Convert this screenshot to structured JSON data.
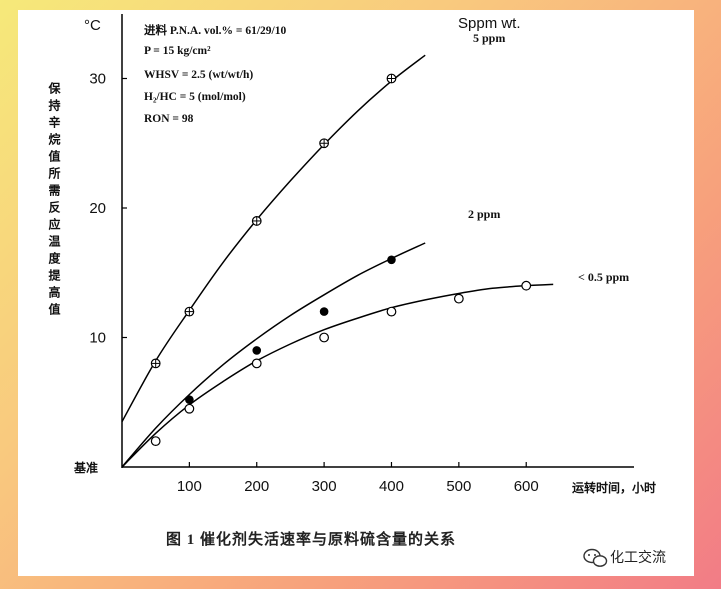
{
  "chart_data": {
    "type": "line",
    "title": "图 1  催化剂失活速率与原料硫含量的关系",
    "ylabel": "保持辛烷值所需反应温度提高值",
    "yunit": "°C",
    "xlabel": "运转时间，小时",
    "y_origin_label": "基准",
    "legend_title": "Sppm wt.",
    "xlim": [
      0,
      650
    ],
    "ylim": [
      -2,
      35
    ],
    "x_ticks": [
      100,
      200,
      300,
      400,
      500,
      600
    ],
    "y_ticks": [
      10,
      20,
      30
    ],
    "conditions": [
      "进料 P.N.A. vol.% = 61/29/10",
      "P = 15 kg/cm²",
      "WHSV = 2.5 (wt/wt/h)",
      "H₂/HC = 5 (mol/mol)",
      "RON = 98"
    ],
    "series": [
      {
        "name": "5 ppm",
        "marker": "circle-plus",
        "points": [
          [
            50,
            8
          ],
          [
            100,
            12
          ],
          [
            200,
            19
          ],
          [
            300,
            25
          ],
          [
            400,
            30
          ]
        ],
        "curve": [
          [
            0,
            3.5
          ],
          [
            50,
            8.2
          ],
          [
            100,
            12.1
          ],
          [
            150,
            15.8
          ],
          [
            200,
            19.1
          ],
          [
            250,
            22.1
          ],
          [
            300,
            24.9
          ],
          [
            350,
            27.5
          ],
          [
            400,
            29.8
          ],
          [
            450,
            31.8
          ]
        ]
      },
      {
        "name": "2 ppm",
        "marker": "filled-circle",
        "points": [
          [
            100,
            5.2
          ],
          [
            200,
            9
          ],
          [
            300,
            12
          ],
          [
            400,
            16
          ]
        ],
        "curve": [
          [
            0,
            0
          ],
          [
            50,
            3
          ],
          [
            100,
            5.6
          ],
          [
            150,
            7.9
          ],
          [
            200,
            9.9
          ],
          [
            250,
            11.7
          ],
          [
            300,
            13.3
          ],
          [
            350,
            14.8
          ],
          [
            400,
            16.1
          ],
          [
            450,
            17.3
          ]
        ]
      },
      {
        "name": "< 0.5 ppm",
        "marker": "open-circle",
        "points": [
          [
            50,
            2
          ],
          [
            100,
            4.5
          ],
          [
            200,
            8
          ],
          [
            300,
            10
          ],
          [
            400,
            12
          ],
          [
            500,
            13
          ],
          [
            600,
            14
          ]
        ],
        "curve": [
          [
            0,
            0
          ],
          [
            50,
            2.6
          ],
          [
            100,
            4.8
          ],
          [
            150,
            6.6
          ],
          [
            200,
            8.2
          ],
          [
            250,
            9.5
          ],
          [
            300,
            10.6
          ],
          [
            350,
            11.5
          ],
          [
            400,
            12.3
          ],
          [
            450,
            12.9
          ],
          [
            500,
            13.4
          ],
          [
            550,
            13.8
          ],
          [
            600,
            14
          ],
          [
            640,
            14.1
          ]
        ]
      }
    ]
  },
  "watermark": "化工交流"
}
